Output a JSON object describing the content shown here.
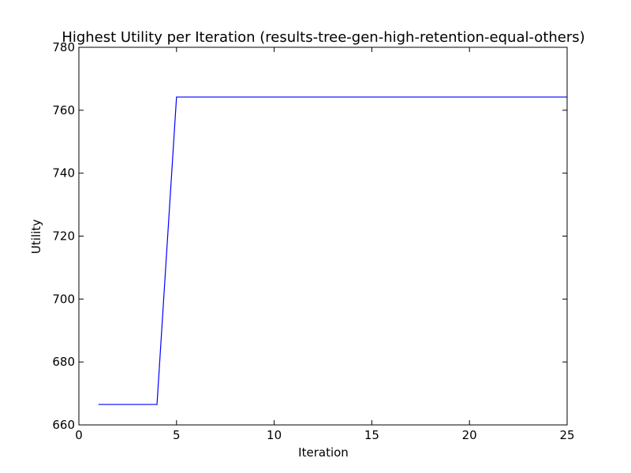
{
  "chart_data": {
    "type": "line",
    "title": "Highest Utility per Iteration (results-tree-gen-high-retention-equal-others)",
    "xlabel": "Iteration",
    "ylabel": "Utility",
    "xlim": [
      0,
      25
    ],
    "ylim": [
      660,
      780
    ],
    "xticks": [
      0,
      5,
      10,
      15,
      20,
      25
    ],
    "yticks": [
      660,
      680,
      700,
      720,
      740,
      760,
      780
    ],
    "xtick_labels": [
      "0",
      "5",
      "10",
      "15",
      "20",
      "25"
    ],
    "ytick_labels": [
      "660",
      "680",
      "700",
      "720",
      "740",
      "760",
      "780"
    ],
    "grid": false,
    "series": [
      {
        "color": "#0000ff",
        "x": [
          1,
          2,
          3,
          4,
          5,
          6,
          7,
          8,
          9,
          10,
          11,
          12,
          13,
          14,
          15,
          16,
          17,
          18,
          19,
          20,
          21,
          22,
          23,
          24,
          25
        ],
        "y": [
          666.5,
          666.5,
          666.5,
          666.5,
          764.2,
          764.2,
          764.2,
          764.2,
          764.2,
          764.2,
          764.2,
          764.2,
          764.2,
          764.2,
          764.2,
          764.2,
          764.2,
          764.2,
          764.2,
          764.2,
          764.2,
          764.2,
          764.2,
          764.2,
          764.2
        ]
      }
    ]
  }
}
